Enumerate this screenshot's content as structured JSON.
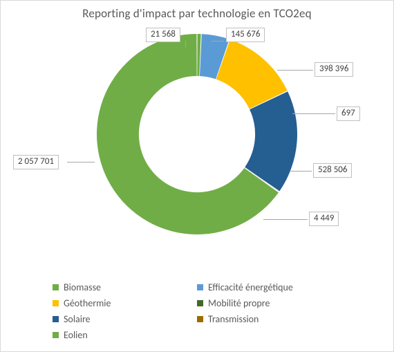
{
  "chart": {
    "type": "donut",
    "title": "Reporting d'impact par technologie en TCO2eq",
    "title_fontsize": 17,
    "title_color": "#595959",
    "background_color": "#ffffff",
    "border_color": "#d9d9d9",
    "inner_radius_ratio": 0.58,
    "start_angle_deg": -90,
    "series": [
      {
        "name": "Biomasse",
        "value": 21568,
        "value_text": "21 568",
        "color": "#70ad47"
      },
      {
        "name": "Efficacité énergétique",
        "value": 145676,
        "value_text": "145 676",
        "color": "#5b9bd5"
      },
      {
        "name": "Géothermie",
        "value": 398396,
        "value_text": "398 396",
        "color": "#ffc000"
      },
      {
        "name": "Mobilité propre",
        "value": 697,
        "value_text": "697",
        "color": "#42682b"
      },
      {
        "name": "Solaire",
        "value": 528506,
        "value_text": "528 506",
        "color": "#255e91"
      },
      {
        "name": "Transmission",
        "value": 4449,
        "value_text": "4 449",
        "color": "#9e6b00"
      },
      {
        "name": "Eolien",
        "value": 2057701,
        "value_text": "2 057 701",
        "color": "#70ad47"
      }
    ],
    "label_font_size": 13,
    "label_border_color": "#bfbfbf",
    "label_text_color": "#404040",
    "legend": {
      "font_size": 14,
      "text_color": "#595959",
      "swatch_size": 9
    }
  }
}
